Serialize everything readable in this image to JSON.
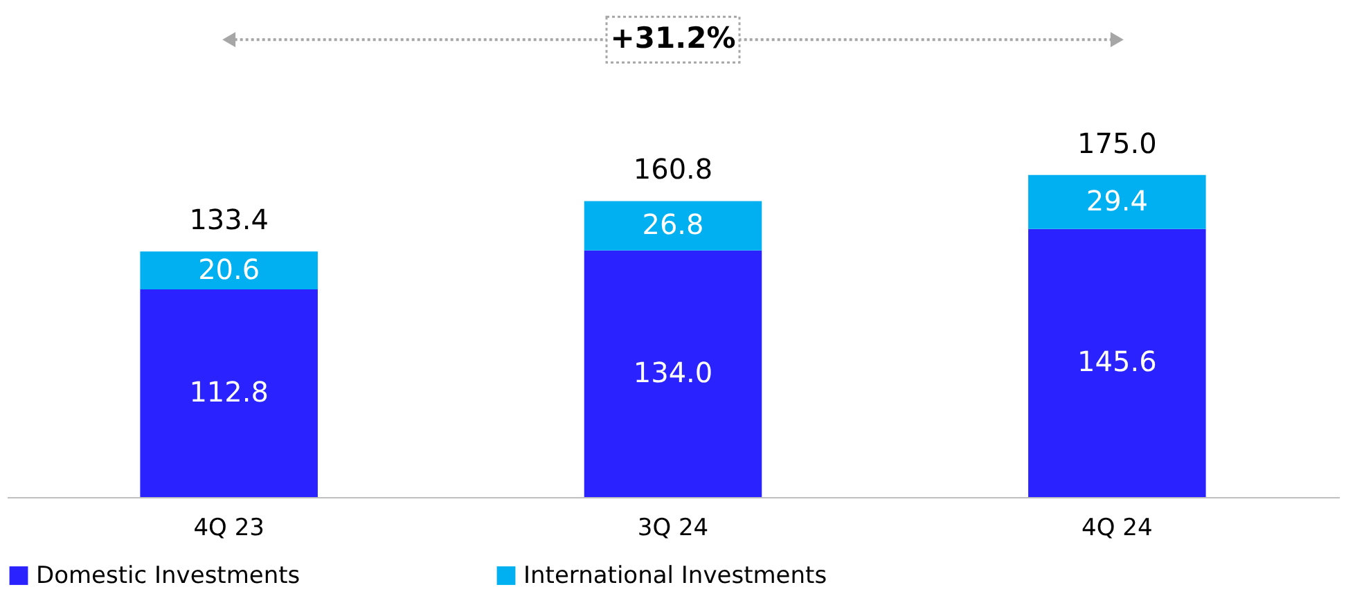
{
  "chart_data": {
    "type": "bar",
    "stacked": true,
    "categories": [
      "4Q 23",
      "3Q 24",
      "4Q 24"
    ],
    "series": [
      {
        "name": "Domestic Investments",
        "color": "#2a22ff",
        "values": [
          112.8,
          134.0,
          145.6
        ],
        "value_labels": [
          "112.8",
          "134.0",
          "145.6"
        ]
      },
      {
        "name": "International Investments",
        "color": "#00b0f0",
        "values": [
          20.6,
          26.8,
          29.4
        ],
        "value_labels": [
          "20.6",
          "26.8",
          "29.4"
        ]
      }
    ],
    "totals": [
      "133.4",
      "160.8",
      "175.0"
    ],
    "grid": false,
    "legend": "bottom",
    "annotations": [
      "+31.2%"
    ]
  }
}
